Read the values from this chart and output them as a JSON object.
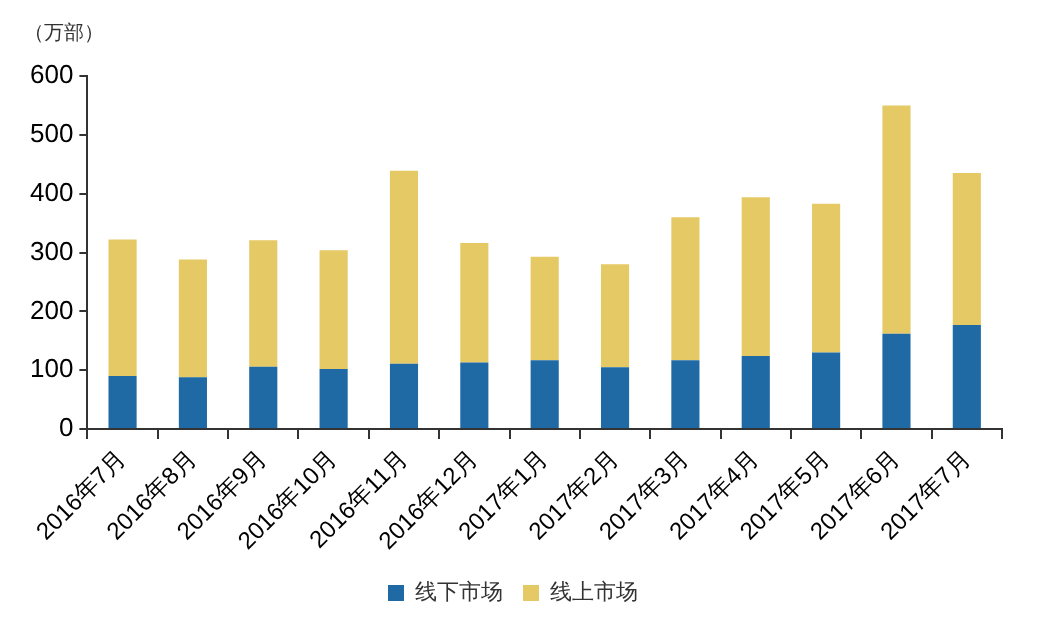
{
  "chart_data": {
    "type": "bar",
    "ylabel": "（万部）",
    "stacked": true,
    "grid": false,
    "legend": "bottom",
    "categories": [
      "2016年7月",
      "2016年8月",
      "2016年9月",
      "2016年10月",
      "2016年11月",
      "2016年12月",
      "2017年1月",
      "2017年2月",
      "2017年3月",
      "2017年4月",
      "2017年5月",
      "2017年6月",
      "2017年7月"
    ],
    "ylim": [
      0,
      600
    ],
    "yticks": [
      0,
      100,
      200,
      300,
      400,
      500,
      600
    ],
    "series": [
      {
        "name": "线下市场",
        "color": "#1f6aa5",
        "values": [
          90,
          88,
          106,
          102,
          111,
          113,
          117,
          105,
          117,
          124,
          130,
          162,
          177
        ]
      },
      {
        "name": "线上市场",
        "color": "#e5c965",
        "values": [
          232,
          200,
          215,
          202,
          328,
          203,
          176,
          175,
          243,
          270,
          253,
          388,
          258
        ]
      }
    ]
  }
}
